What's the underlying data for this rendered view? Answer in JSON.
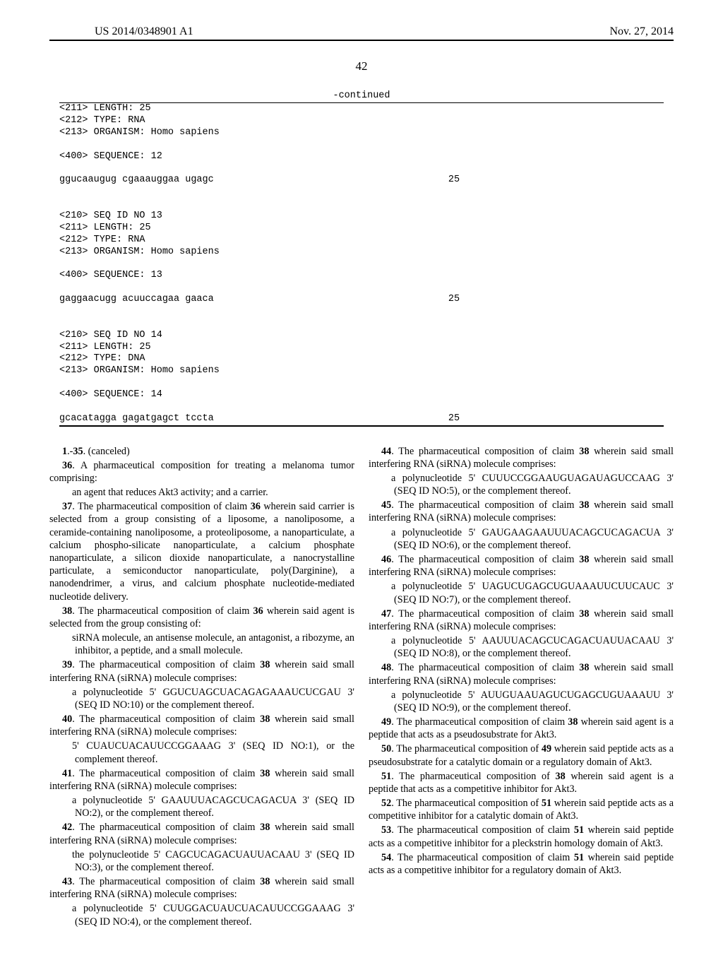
{
  "header": {
    "pub_number": "US 2014/0348901 A1",
    "pub_date": "Nov. 27, 2014"
  },
  "page_number": "42",
  "continued_label": "-continued",
  "seq_listing": {
    "blocks": [
      {
        "lines": [
          "<211> LENGTH: 25",
          "<212> TYPE: RNA",
          "<213> ORGANISM: Homo sapiens",
          "",
          "<400> SEQUENCE: 12",
          ""
        ],
        "sequence": "ggucaaugug cgaaauggaa ugagc",
        "len": "25"
      },
      {
        "lines": [
          "",
          "",
          "<210> SEQ ID NO 13",
          "<211> LENGTH: 25",
          "<212> TYPE: RNA",
          "<213> ORGANISM: Homo sapiens",
          "",
          "<400> SEQUENCE: 13",
          ""
        ],
        "sequence": "gaggaacugg acuuccagaa gaaca",
        "len": "25"
      },
      {
        "lines": [
          "",
          "",
          "<210> SEQ ID NO 14",
          "<211> LENGTH: 25",
          "<212> TYPE: DNA",
          "<213> ORGANISM: Homo sapiens",
          "",
          "<400> SEQUENCE: 14",
          ""
        ],
        "sequence": "gcacatagga gagatgagct tccta",
        "len": "25"
      }
    ]
  },
  "claims_left": [
    {
      "type": "p",
      "parts": [
        {
          "b": "1"
        },
        {
          "t": ".-"
        },
        {
          "b": "35"
        },
        {
          "t": ". (canceled)"
        }
      ]
    },
    {
      "type": "p",
      "parts": [
        {
          "b": "36"
        },
        {
          "t": ". A pharmaceutical composition for treating a melanoma tumor comprising:"
        }
      ]
    },
    {
      "type": "sub",
      "parts": [
        {
          "t": "an agent that reduces Akt3 activity; and a carrier."
        }
      ]
    },
    {
      "type": "p",
      "parts": [
        {
          "b": "37"
        },
        {
          "t": ". The pharmaceutical composition of claim "
        },
        {
          "b": "36"
        },
        {
          "t": " wherein said carrier is selected from a group consisting of a liposome, a nanoliposome, a ceramide-containing nanoliposome, a proteoliposome, a nanoparticulate, a calcium phospho-silicate nanoparticulate, a calcium phosphate nanoparticulate, a silicon dioxide nanoparticulate, a nanocrystalline particulate, a semiconductor nanoparticulate, poly(Darginine), a nanodendrimer, a virus, and calcium phosphate nucleotide-mediated nucleotide delivery."
        }
      ]
    },
    {
      "type": "p",
      "parts": [
        {
          "b": "38"
        },
        {
          "t": ". The pharmaceutical composition of claim "
        },
        {
          "b": "36"
        },
        {
          "t": " wherein said agent is selected from the group consisting of:"
        }
      ]
    },
    {
      "type": "sub",
      "parts": [
        {
          "t": "siRNA molecule, an antisense molecule, an antagonist, a ribozyme, an inhibitor, a peptide, and a small molecule."
        }
      ]
    },
    {
      "type": "p",
      "parts": [
        {
          "b": "39"
        },
        {
          "t": ". The pharmaceutical composition of claim "
        },
        {
          "b": "38"
        },
        {
          "t": " wherein said small interfering RNA (siRNA) molecule comprises:"
        }
      ]
    },
    {
      "type": "sub",
      "parts": [
        {
          "t": "a polynucleotide 5' GGUCUAGCUACAGAGAAAU­CUCGAU 3' (SEQ ID NO:10) or the complement thereof."
        }
      ]
    },
    {
      "type": "p",
      "parts": [
        {
          "b": "40"
        },
        {
          "t": ". The pharmaceutical composition of claim "
        },
        {
          "b": "38"
        },
        {
          "t": " wherein said small interfering RNA (siRNA) molecule comprises:"
        }
      ]
    },
    {
      "type": "sub",
      "parts": [
        {
          "t": "5' CUAUCUACAUUCCGGAAAG 3' (SEQ ID NO:1), or the complement thereof."
        }
      ]
    },
    {
      "type": "p",
      "parts": [
        {
          "b": "41"
        },
        {
          "t": ". The pharmaceutical composition of claim "
        },
        {
          "b": "38"
        },
        {
          "t": " wherein said small interfering RNA (siRNA) molecule comprises:"
        }
      ]
    },
    {
      "type": "sub",
      "parts": [
        {
          "t": "a polynucleotide 5' GAAUUUACAGCUCAGACUA 3' (SEQ ID NO:2), or the complement thereof."
        }
      ]
    },
    {
      "type": "p",
      "parts": [
        {
          "b": "42"
        },
        {
          "t": ". The pharmaceutical composition of claim "
        },
        {
          "b": "38"
        },
        {
          "t": " wherein said small interfering RNA (siRNA) molecule comprises:"
        }
      ]
    },
    {
      "type": "sub",
      "parts": [
        {
          "t": "the polynucleotide 5' CAGCUCAGACUAUUACAAU 3' (SEQ ID NO:3), or the complement thereof."
        }
      ]
    },
    {
      "type": "p",
      "parts": [
        {
          "b": "43"
        },
        {
          "t": ". The pharmaceutical composition of claim "
        },
        {
          "b": "38"
        },
        {
          "t": " wherein said small interfering RNA (siRNA) molecule comprises:"
        }
      ]
    },
    {
      "type": "sub",
      "parts": [
        {
          "t": "a polynucleotide 5' CUUGGACUAUCUACAUUCCG­GAAAG 3' (SEQ ID NO:4), or the complement thereof."
        }
      ]
    }
  ],
  "claims_right": [
    {
      "type": "p",
      "parts": [
        {
          "b": "44"
        },
        {
          "t": ". The pharmaceutical composition of claim "
        },
        {
          "b": "38"
        },
        {
          "t": " wherein said small interfering RNA (siRNA) molecule comprises:"
        }
      ]
    },
    {
      "type": "sub",
      "parts": [
        {
          "t": "a polynucleotide 5' CUUUCCGGAAUGUAGAUAGUC­CAAG 3' (SEQ ID NO:5), or the complement thereof."
        }
      ]
    },
    {
      "type": "p",
      "parts": [
        {
          "b": "45"
        },
        {
          "t": ". The pharmaceutical composition of claim "
        },
        {
          "b": "38"
        },
        {
          "t": " wherein said small interfering RNA (siRNA) molecule comprises:"
        }
      ]
    },
    {
      "type": "sub",
      "parts": [
        {
          "t": "a polynucleotide 5' GAUGAAGAAUUUACAGCUCA­GACUA 3' (SEQ ID NO:6), or the complement thereof."
        }
      ]
    },
    {
      "type": "p",
      "parts": [
        {
          "b": "46"
        },
        {
          "t": ". The pharmaceutical composition of claim "
        },
        {
          "b": "38"
        },
        {
          "t": " wherein said small interfering RNA (siRNA) molecule comprises:"
        }
      ]
    },
    {
      "type": "sub",
      "parts": [
        {
          "t": "a polynucleotide 5' UAGUCUGAGCUGUAAAUUCU­UCAUC 3' (SEQ ID NO:7), or the complement thereof."
        }
      ]
    },
    {
      "type": "p",
      "parts": [
        {
          "b": "47"
        },
        {
          "t": ". The pharmaceutical composition of claim "
        },
        {
          "b": "38"
        },
        {
          "t": " wherein said small interfering RNA (siRNA) molecule comprises:"
        }
      ]
    },
    {
      "type": "sub",
      "parts": [
        {
          "t": "a polynucleotide 5' AAUUUACAGCUCAGACUAUUA­CAAU 3' (SEQ ID NO:8), or the complement thereof."
        }
      ]
    },
    {
      "type": "p",
      "parts": [
        {
          "b": "48"
        },
        {
          "t": ". The pharmaceutical composition of claim "
        },
        {
          "b": "38"
        },
        {
          "t": " wherein said small interfering RNA (siRNA) molecule comprises:"
        }
      ]
    },
    {
      "type": "sub",
      "parts": [
        {
          "t": "a polynucleotide 5' AUUGUAAUAGUCUGAGCU­GUAAAUU 3' (SEQ ID NO:9), or the complement thereof."
        }
      ]
    },
    {
      "type": "p",
      "parts": [
        {
          "b": "49"
        },
        {
          "t": ". The pharmaceutical composition of claim "
        },
        {
          "b": "38"
        },
        {
          "t": " wherein said agent is a peptide that acts as a pseudosubstrate for Akt3."
        }
      ]
    },
    {
      "type": "p",
      "parts": [
        {
          "b": "50"
        },
        {
          "t": ". The pharmaceutical composition of "
        },
        {
          "b": "49"
        },
        {
          "t": " wherein said peptide acts as a pseudosubstrate for a catalytic domain or a regulatory domain of Akt3."
        }
      ]
    },
    {
      "type": "p",
      "parts": [
        {
          "b": "51"
        },
        {
          "t": ". The pharmaceutical composition of "
        },
        {
          "b": "38"
        },
        {
          "t": " wherein said agent is a peptide that acts as a competitive inhibitor for Akt3."
        }
      ]
    },
    {
      "type": "p",
      "parts": [
        {
          "b": "52"
        },
        {
          "t": ". The pharmaceutical composition of "
        },
        {
          "b": "51"
        },
        {
          "t": " wherein said peptide acts as a competitive inhibitor for a catalytic domain of Akt3."
        }
      ]
    },
    {
      "type": "p",
      "parts": [
        {
          "b": "53"
        },
        {
          "t": ". The pharmaceutical composition of claim "
        },
        {
          "b": "51"
        },
        {
          "t": " wherein said peptide acts as a competitive inhibitor for a pleckstrin homology domain of Akt3."
        }
      ]
    },
    {
      "type": "p",
      "parts": [
        {
          "b": "54"
        },
        {
          "t": ". The pharmaceutical composition of claim "
        },
        {
          "b": "51"
        },
        {
          "t": " wherein said peptide acts as a competitive inhibitor for a regulatory domain of Akt3."
        }
      ]
    }
  ]
}
